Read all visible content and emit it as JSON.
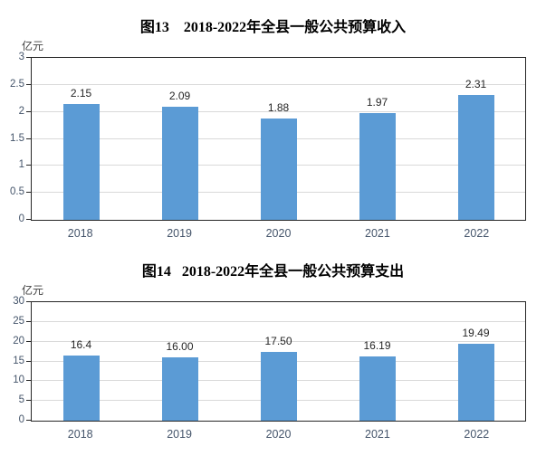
{
  "chart_data": [
    {
      "type": "bar",
      "title": "图13    2018-2022年全县一般公共预算收入",
      "unit": "亿元",
      "categories": [
        "2018",
        "2019",
        "2020",
        "2021",
        "2022"
      ],
      "values": [
        2.15,
        2.09,
        1.88,
        1.97,
        2.31
      ],
      "labels": [
        "2.15",
        "2.09",
        "1.88",
        "1.97",
        "2.31"
      ],
      "ylim": [
        0,
        3
      ],
      "yticks": [
        0,
        0.5,
        1,
        1.5,
        2,
        2.5,
        3
      ],
      "ytick_labels": [
        "0",
        "0.5",
        "1",
        "1.5",
        "2",
        "2.5",
        "3"
      ],
      "xlabel": "",
      "ylabel": "亿元",
      "bar_color": "#5b9bd5",
      "grid": "horizontal",
      "legend_position": "none"
    },
    {
      "type": "bar",
      "title": "图14   2018-2022年全县一般公共预算支出",
      "unit": "亿元",
      "categories": [
        "2018",
        "2019",
        "2020",
        "2021",
        "2022"
      ],
      "values": [
        16.4,
        16.0,
        17.5,
        16.19,
        19.49
      ],
      "labels": [
        "16.4",
        "16.00",
        "17.50",
        "16.19",
        "19.49"
      ],
      "ylim": [
        0,
        30
      ],
      "yticks": [
        0,
        5,
        10,
        15,
        20,
        25,
        30
      ],
      "ytick_labels": [
        "0",
        "5",
        "10",
        "15",
        "20",
        "25",
        "30"
      ],
      "xlabel": "",
      "ylabel": "亿元",
      "bar_color": "#5b9bd5",
      "grid": "horizontal",
      "legend_position": "none"
    }
  ],
  "colors": {
    "bar": "#5b9bd5",
    "axis_border": "#262626",
    "gridline": "#d9d9d9",
    "tick_text": "#44546a",
    "data_label_text": "#262626",
    "title_text": "#000000",
    "background": "#ffffff"
  }
}
